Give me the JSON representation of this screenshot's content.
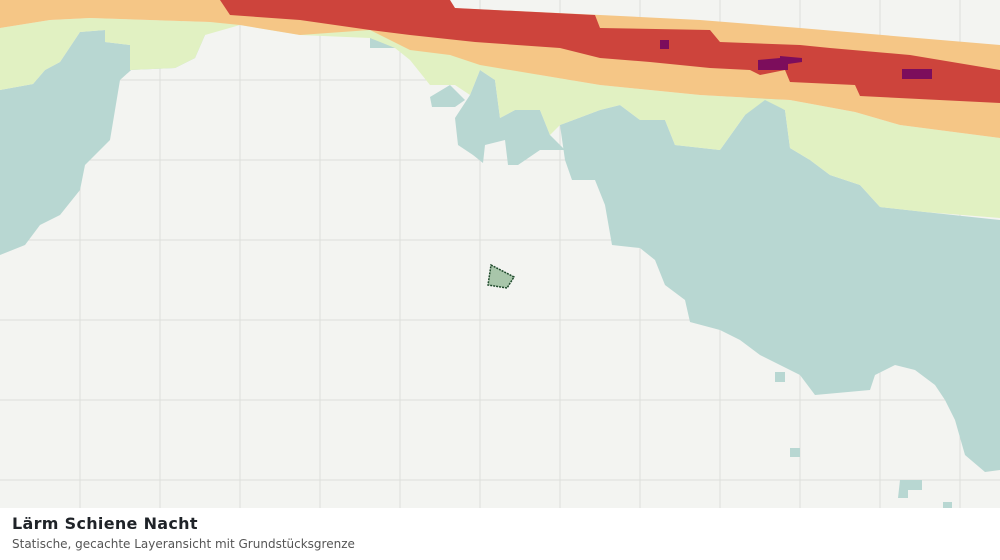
{
  "map": {
    "title": "Lärm Schiene Nacht",
    "subtitle": "Statische, gecachte Layeransicht mit Grundstücksgrenze"
  }
}
